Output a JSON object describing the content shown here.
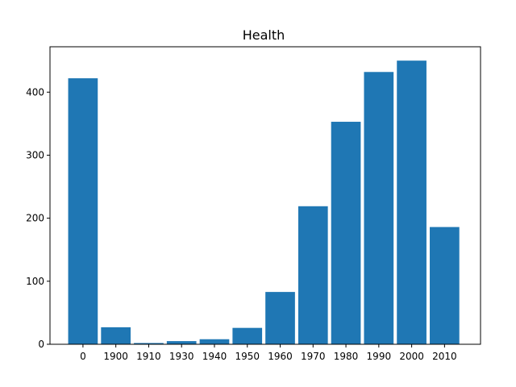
{
  "chart_data": {
    "type": "bar",
    "title": "Health",
    "xlabel": "",
    "ylabel": "",
    "categories": [
      "0",
      "1900",
      "1910",
      "1930",
      "1940",
      "1950",
      "1960",
      "1970",
      "1980",
      "1990",
      "2000",
      "2010"
    ],
    "values": [
      422,
      27,
      2,
      5,
      8,
      26,
      83,
      219,
      353,
      432,
      450,
      186
    ],
    "ylim": [
      0,
      472
    ],
    "yticks": [
      0,
      100,
      200,
      300,
      400
    ],
    "grid": false,
    "legend": "none",
    "colors": {
      "bar": "#1f77b4",
      "axis": "#000000",
      "background": "#ffffff"
    }
  }
}
